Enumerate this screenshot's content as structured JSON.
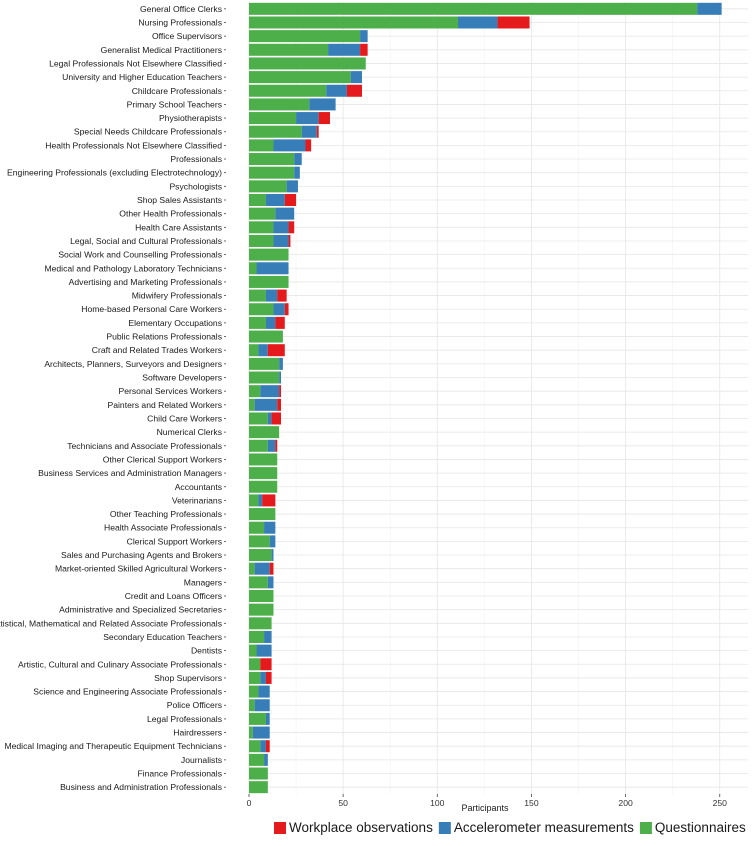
{
  "chart_data": {
    "type": "bar",
    "orientation": "horizontal",
    "stacked": true,
    "title": "",
    "xlabel": "Participants",
    "ylabel": "",
    "xlim": [
      0,
      265
    ],
    "xticks": [
      0,
      50,
      100,
      150,
      200,
      250
    ],
    "grid": true,
    "legend_position": "bottom",
    "categories": [
      "General Office Clerks",
      "Nursing Professionals",
      "Office Supervisors",
      "Generalist Medical Practitioners",
      "Legal Professionals Not Elsewhere Classified",
      "University and Higher Education Teachers",
      "Childcare Professionals",
      "Primary School Teachers",
      "Physiotherapists",
      "Special Needs Childcare Professionals",
      "Health Professionals Not Elsewhere Classified",
      "Professionals",
      "Engineering Professionals (excluding Electrotechnology)",
      "Psychologists",
      "Shop Sales Assistants",
      "Other Health Professionals",
      "Health Care Assistants",
      "Legal, Social and Cultural Professionals",
      "Social Work and Counselling Professionals",
      "Medical and Pathology Laboratory Technicians",
      "Advertising and Marketing Professionals",
      "Midwifery Professionals",
      "Home-based Personal Care Workers",
      "Elementary Occupations",
      "Public Relations Professionals",
      "Craft and Related Trades Workers",
      "Architects, Planners, Surveyors and Designers",
      "Software Developers",
      "Personal Services Workers",
      "Painters and Related Workers",
      "Child Care Workers",
      "Numerical Clerks",
      "Technicians and Associate Professionals",
      "Other Clerical Support Workers",
      "Business Services and Administration Managers",
      "Accountants",
      "Veterinarians",
      "Other Teaching Professionals",
      "Health Associate Professionals",
      "Clerical Support Workers",
      "Sales and Purchasing Agents and Brokers",
      "Market-oriented Skilled Agricultural Workers",
      "Managers",
      "Credit and Loans Officers",
      "Administrative and Specialized Secretaries",
      "Statistical, Mathematical and Related Associate Professionals",
      "Secondary Education Teachers",
      "Dentists",
      "Artistic, Cultural and Culinary Associate Professionals",
      "Shop Supervisors",
      "Science and Engineering Associate Professionals",
      "Police Officers",
      "Legal Professionals",
      "Hairdressers",
      "Medical Imaging and Therapeutic Equipment Technicians",
      "Journalists",
      "Finance Professionals",
      "Business and Administration Professionals"
    ],
    "series": [
      {
        "name": "Questionnaires",
        "color": "#4daf4a",
        "values": [
          238,
          111,
          59,
          42,
          62,
          54,
          41,
          32,
          25,
          28,
          13,
          24,
          24,
          20,
          9,
          14,
          13,
          13,
          21,
          4,
          21,
          9,
          13,
          9,
          18,
          5,
          16,
          16,
          6,
          3,
          10,
          16,
          10,
          15,
          15,
          15,
          5,
          14,
          8,
          11,
          12,
          3,
          10,
          13,
          13,
          12,
          8,
          4,
          6,
          6,
          5,
          3,
          9,
          2,
          6,
          8,
          10,
          10
        ]
      },
      {
        "name": "Accelerometer measurements",
        "color": "#377eb8",
        "values": [
          13,
          21,
          4,
          17,
          0,
          6,
          11,
          14,
          12,
          8,
          17,
          4,
          3,
          6,
          10,
          10,
          8,
          8,
          0,
          17,
          0,
          6,
          6,
          5,
          0,
          5,
          2,
          1,
          10,
          12,
          2,
          0,
          4,
          0,
          0,
          0,
          2,
          0,
          6,
          3,
          1,
          8,
          3,
          0,
          0,
          0,
          4,
          8,
          0,
          3,
          6,
          8,
          2,
          9,
          3,
          2,
          0,
          0
        ]
      },
      {
        "name": "Workplace observations",
        "color": "#e41a1c",
        "values": [
          0,
          17,
          0,
          4,
          0,
          0,
          8,
          0,
          6,
          1,
          3,
          0,
          0,
          0,
          6,
          0,
          3,
          1,
          0,
          0,
          0,
          5,
          2,
          5,
          0,
          9,
          0,
          0,
          1,
          2,
          5,
          0,
          1,
          0,
          0,
          0,
          7,
          0,
          0,
          0,
          0,
          2,
          0,
          0,
          0,
          0,
          0,
          0,
          6,
          3,
          0,
          0,
          0,
          0,
          2,
          0,
          0,
          0
        ]
      }
    ],
    "legend": [
      "Workplace observations",
      "Accelerometer measurements",
      "Questionnaires"
    ]
  }
}
